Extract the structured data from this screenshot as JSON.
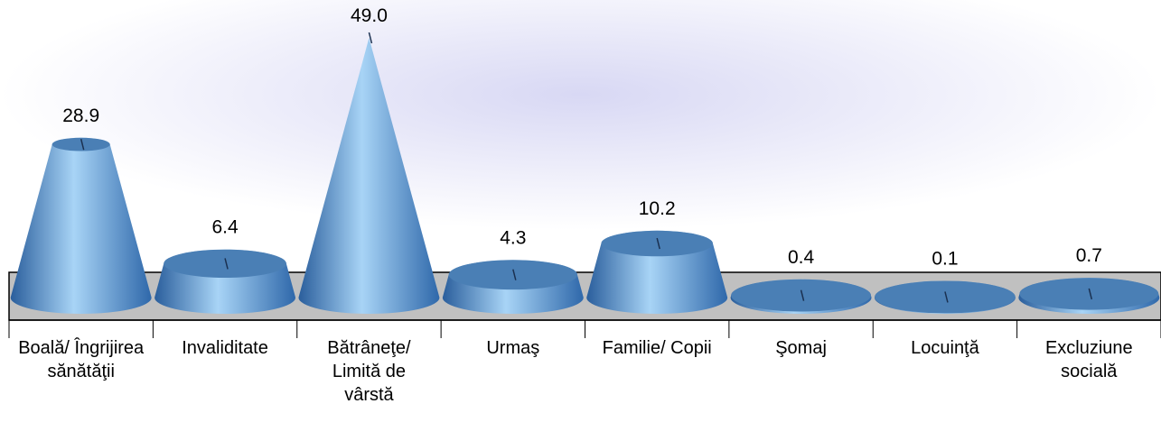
{
  "chart_data": {
    "type": "cone",
    "categories": [
      "Boală/ Îngrijirea sănătăţii",
      "Invaliditate",
      "Bătrâneţe/ Limită de vârstă",
      "Urmaş",
      "Familie/ Copii",
      "Şomaj",
      "Locuinţă",
      "Excluziune socială"
    ],
    "values": [
      28.9,
      6.4,
      49.0,
      4.3,
      10.2,
      0.4,
      0.1,
      0.7
    ],
    "value_labels": [
      "28.9",
      "6.4",
      "49.0",
      "4.3",
      "10.2",
      "0.4",
      "0.1",
      "0.7"
    ],
    "color": "#4f8fd0"
  }
}
